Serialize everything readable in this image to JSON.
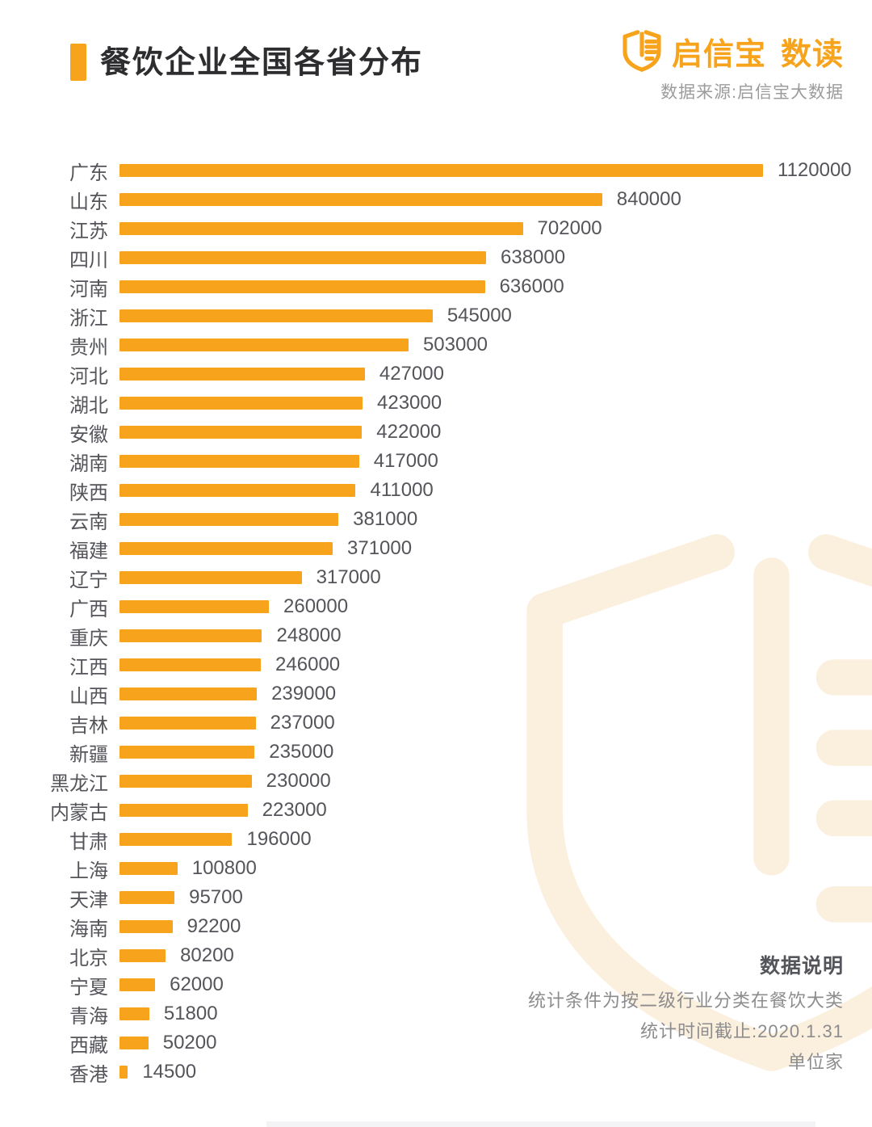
{
  "header": {
    "title": "餐饮企业全国各省分布",
    "brand_name": "启信宝",
    "brand_suffix": "数读",
    "source": "数据来源:启信宝大数据"
  },
  "chart_data": {
    "type": "bar",
    "orientation": "horizontal",
    "title": "餐饮企业全国各省分布",
    "unit": "家",
    "xlim": [
      0,
      1120000
    ],
    "value_labels_shown": true,
    "grid": false,
    "legend": false,
    "categories": [
      "广东",
      "山东",
      "江苏",
      "四川",
      "河南",
      "浙江",
      "贵州",
      "河北",
      "湖北",
      "安徽",
      "湖南",
      "陕西",
      "云南",
      "福建",
      "辽宁",
      "广西",
      "重庆",
      "江西",
      "山西",
      "吉林",
      "新疆",
      "黑龙江",
      "内蒙古",
      "甘肃",
      "上海",
      "天津",
      "海南",
      "北京",
      "宁夏",
      "青海",
      "西藏",
      "香港"
    ],
    "values": [
      1120000,
      840000,
      702000,
      638000,
      636000,
      545000,
      503000,
      427000,
      423000,
      422000,
      417000,
      411000,
      381000,
      371000,
      317000,
      260000,
      248000,
      246000,
      239000,
      237000,
      235000,
      230000,
      223000,
      196000,
      100800,
      95700,
      92200,
      80200,
      62000,
      51800,
      50200,
      14500
    ]
  },
  "footnote": {
    "heading": "数据说明",
    "lines": [
      "统计条件为按二级行业分类在餐饮大类",
      "统计时间截止:2020.1.31",
      "单位家"
    ]
  },
  "colors": {
    "accent": "#F7A31B",
    "bar": "#F7A31B",
    "title_text": "#2D2D30",
    "label_text": "#54555A",
    "value_text": "#54555A",
    "source_text": "#9C9C9E",
    "note_heading": "#54555A",
    "note_text": "#8C8C8E",
    "watermark": "#FBEFDE"
  }
}
